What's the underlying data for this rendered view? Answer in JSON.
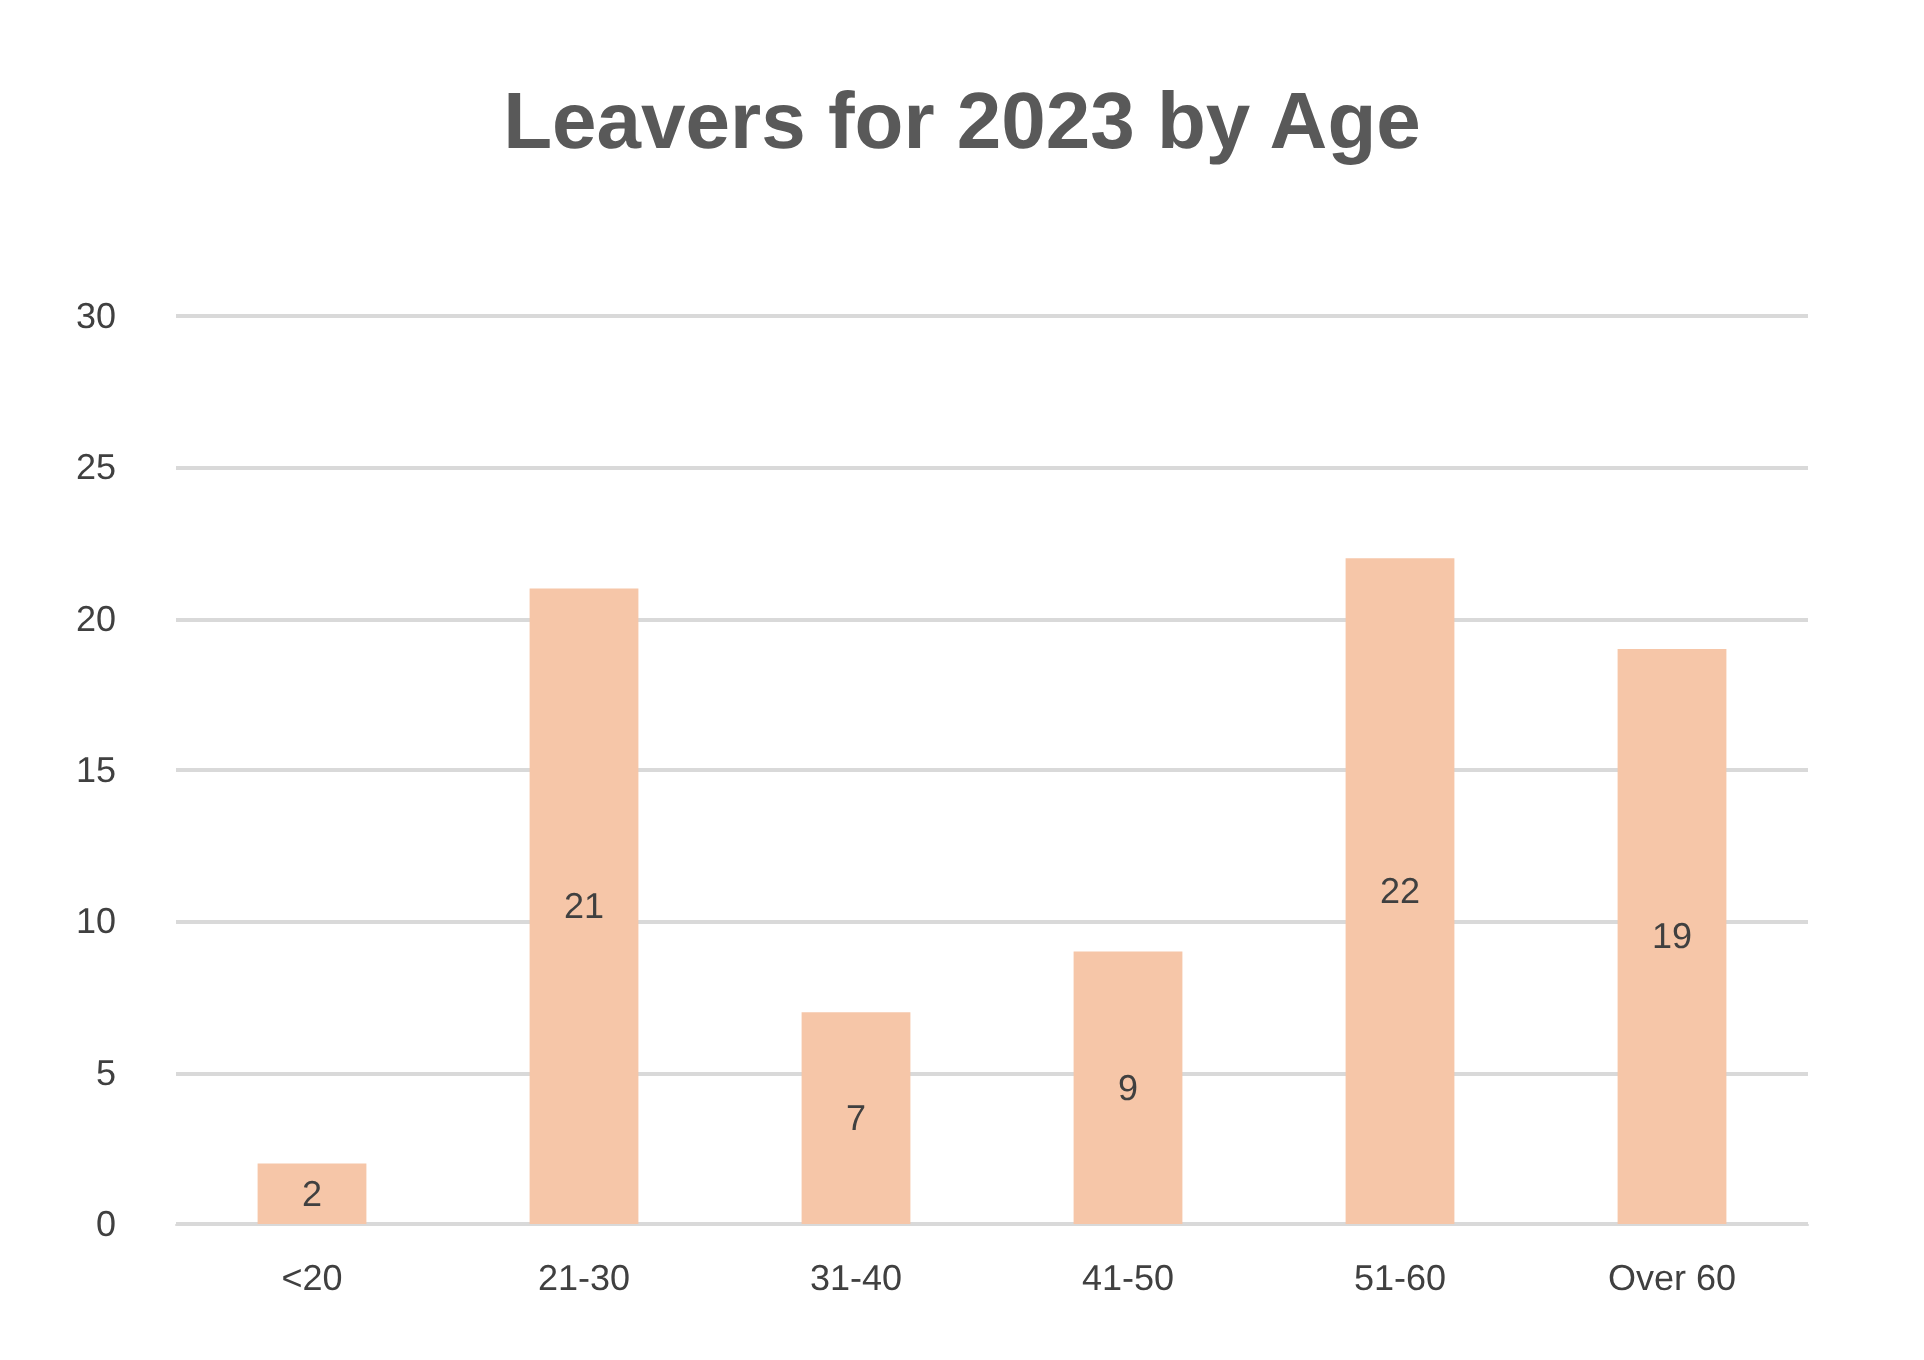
{
  "chart_data": {
    "type": "bar",
    "title": "Leavers for 2023 by Age",
    "categories": [
      "<20",
      "21-30",
      "31-40",
      "41-50",
      "51-60",
      "Over 60"
    ],
    "values": [
      2,
      21,
      7,
      9,
      22,
      19
    ],
    "color": "#f6c6a8",
    "ylim": [
      0,
      30
    ],
    "yticks": [
      0,
      5,
      10,
      15,
      20,
      25,
      30
    ],
    "grid": "y",
    "data_labels": true
  }
}
